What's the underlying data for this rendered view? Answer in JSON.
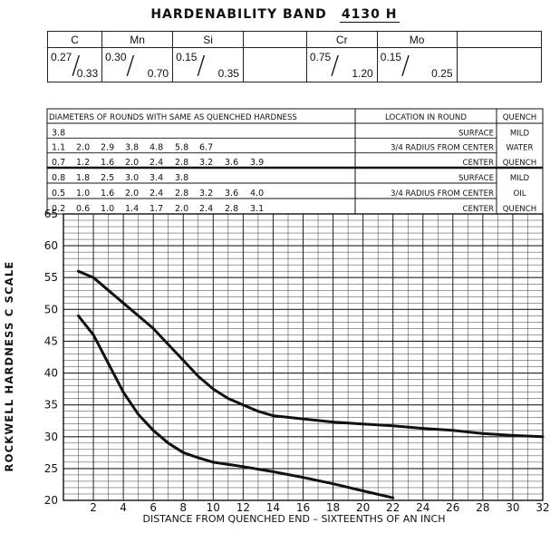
{
  "header": {
    "title": "HARDENABILITY  BAND",
    "grade": "4130 H"
  },
  "composition": [
    {
      "element": "C",
      "low": "0.27",
      "high": "0.33"
    },
    {
      "element": "Mn",
      "low": "0.30",
      "high": "0.70"
    },
    {
      "element": "Si",
      "low": "0.15",
      "high": "0.35"
    },
    {
      "element": "",
      "low": "",
      "high": ""
    },
    {
      "element": "Cr",
      "low": "0.75",
      "high": "1.20"
    },
    {
      "element": "Mo",
      "low": "0.15",
      "high": "0.25"
    },
    {
      "element": "",
      "low": "",
      "high": ""
    }
  ],
  "rounds_table": {
    "header": "DIAMETERS OF ROUNDS WITH SAME AS QUENCHED HARDNESS",
    "location_header": "LOCATION IN ROUND",
    "quench_header": "QUENCH",
    "water": {
      "rows": [
        {
          "values": [
            "3.8"
          ],
          "location": "SURFACE"
        },
        {
          "values": [
            "1.1",
            "2.0",
            "2.9",
            "3.8",
            "4.8",
            "5.8",
            "6.7"
          ],
          "location": "3/4 RADIUS FROM CENTER"
        },
        {
          "values": [
            "0.7",
            "1.2",
            "1.6",
            "2.0",
            "2.4",
            "2.8",
            "3.2",
            "3.6",
            "3.9"
          ],
          "location": "CENTER"
        }
      ],
      "quench": [
        "MILD",
        "WATER",
        "QUENCH"
      ]
    },
    "oil": {
      "rows": [
        {
          "values": [
            "0.8",
            "1.8",
            "2.5",
            "3.0",
            "3.4",
            "3.8"
          ],
          "location": "SURFACE"
        },
        {
          "values": [
            "0.5",
            "1.0",
            "1.6",
            "2.0",
            "2.4",
            "2.8",
            "3.2",
            "3.6",
            "4.0"
          ],
          "location": "3/4 RADIUS FROM CENTER"
        },
        {
          "values": [
            "0.2",
            "0.6",
            "1.0",
            "1.4",
            "1.7",
            "2.0",
            "2.4",
            "2.8",
            "3.1"
          ],
          "location": "CENTER"
        }
      ],
      "quench": [
        "MILD",
        "OIL",
        "QUENCH"
      ]
    }
  },
  "chart_data": {
    "type": "line",
    "xlabel": "DISTANCE FROM QUENCHED END  – SIXTEENTHS OF AN INCH",
    "ylabel": "ROCKWELL HARDNESS C SCALE",
    "xlim": [
      0,
      32
    ],
    "ylim": [
      20,
      65
    ],
    "xticks": [
      2,
      4,
      6,
      8,
      10,
      12,
      14,
      16,
      18,
      20,
      22,
      24,
      26,
      28,
      30,
      32
    ],
    "yticks": [
      20,
      25,
      30,
      35,
      40,
      45,
      50,
      55,
      60,
      65
    ],
    "grid": true,
    "series": [
      {
        "points": [
          [
            1,
            56
          ],
          [
            2,
            55
          ],
          [
            3,
            53
          ],
          [
            4,
            51
          ],
          [
            5,
            49
          ],
          [
            6,
            47
          ],
          [
            7,
            44.5
          ],
          [
            8,
            42
          ],
          [
            9,
            39.5
          ],
          [
            10,
            37.5
          ],
          [
            11,
            36
          ],
          [
            12,
            35
          ],
          [
            13,
            34
          ],
          [
            14,
            33.3
          ],
          [
            16,
            32.8
          ],
          [
            18,
            32.3
          ],
          [
            20,
            32
          ],
          [
            22,
            31.7
          ],
          [
            24,
            31.3
          ],
          [
            26,
            31
          ],
          [
            28,
            30.5
          ],
          [
            30,
            30.2
          ],
          [
            32,
            30
          ]
        ]
      },
      {
        "points": [
          [
            1,
            49
          ],
          [
            2,
            46
          ],
          [
            3,
            41.5
          ],
          [
            4,
            37
          ],
          [
            5,
            33.5
          ],
          [
            6,
            31
          ],
          [
            7,
            29
          ],
          [
            8,
            27.5
          ],
          [
            9,
            26.7
          ],
          [
            10,
            26
          ],
          [
            12,
            25.3
          ],
          [
            14,
            24.5
          ],
          [
            16,
            23.6
          ],
          [
            18,
            22.6
          ],
          [
            20,
            21.5
          ],
          [
            22,
            20.4
          ]
        ]
      }
    ]
  }
}
